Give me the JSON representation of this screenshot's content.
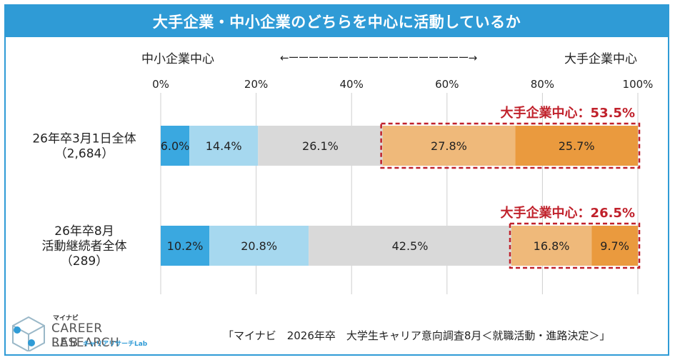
{
  "header": {
    "title": "大手企業・中小企業のどちらを中心に活動しているか"
  },
  "scale": {
    "left_label": "中小企業中心",
    "right_label": "大手企業中心",
    "arrow": "←ーーーーーーーーーーーーーーーーーー→"
  },
  "chart_data": {
    "type": "bar",
    "orientation": "horizontal-stacked-100",
    "xlim": [
      0,
      100
    ],
    "xticks": [
      "0%",
      "20%",
      "40%",
      "60%",
      "80%",
      "100%"
    ],
    "tick_values": [
      0,
      20,
      40,
      60,
      80,
      100
    ],
    "grid": "vertical",
    "categories": [
      {
        "label_lines": [
          "26年卒3月1日全体",
          "（2,684）"
        ]
      },
      {
        "label_lines": [
          "26年卒8月",
          "活動継続者全体",
          "（289）"
        ]
      }
    ],
    "segment_colors": [
      "#3aa8e0",
      "#a6d8ef",
      "#d9d9d9",
      "#efb97a",
      "#ea9a3e"
    ],
    "rows": [
      {
        "values": [
          6.0,
          14.4,
          26.1,
          27.8,
          25.7
        ],
        "labels": [
          "6.0%",
          "14.4%",
          "26.1%",
          "27.8%",
          "25.7%"
        ]
      },
      {
        "values": [
          10.2,
          20.8,
          42.5,
          16.8,
          9.7
        ],
        "labels": [
          "10.2%",
          "20.8%",
          "42.5%",
          "16.8%",
          "9.7%"
        ]
      }
    ],
    "annotations": [
      {
        "text": "大手企業中心：53.5%",
        "color": "#c0212b",
        "row": 0,
        "from": 46.5,
        "to": 100
      },
      {
        "text": "大手企業中心：26.5%",
        "color": "#c0212b",
        "row": 1,
        "from": 73.5,
        "to": 100
      }
    ]
  },
  "footer": {
    "source": "「マイナビ　2026年卒　大学生キャリア意向調査8月＜就職活動・進路決定＞」"
  },
  "logo": {
    "small": "マイナビ",
    "line1": "CAREER RESEARCH",
    "line2": "LAB",
    "sub": "キャリアリサーチLab"
  },
  "colors": {
    "accent": "#2f9bd6",
    "highlight": "#c0212b"
  }
}
